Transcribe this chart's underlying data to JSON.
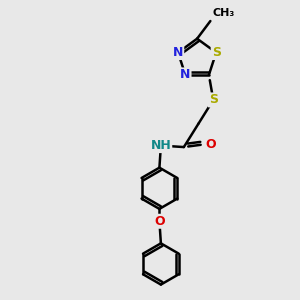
{
  "background_color": "#e8e8e8",
  "atom_colors": {
    "C": "#000000",
    "N": "#2222dd",
    "O": "#dd0000",
    "S": "#aaaa00",
    "H": "#118888"
  },
  "bond_color": "#000000",
  "bond_width": 1.8,
  "figsize": [
    3.0,
    3.0
  ],
  "dpi": 100
}
